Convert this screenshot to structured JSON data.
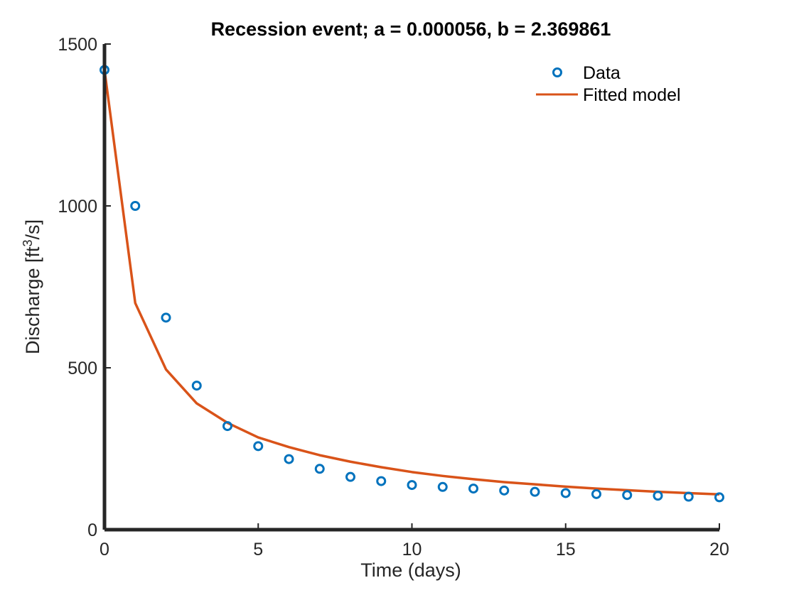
{
  "chart_data": {
    "type": "scatter",
    "title": "Recession event; a = 0.000056, b = 2.369861",
    "xlabel": "Time (days)",
    "ylabel_main": "Discharge [ft",
    "ylabel_sup": "3",
    "ylabel_tail": "/s]",
    "xlim": [
      0,
      20
    ],
    "ylim": [
      0,
      1500
    ],
    "xticks": [
      0,
      5,
      10,
      15,
      20
    ],
    "yticks": [
      0,
      500,
      1000,
      1500
    ],
    "grid": false,
    "legend_position": "top-right",
    "series": [
      {
        "name": "Data",
        "kind": "markers",
        "marker": "circle",
        "color": "#0072BD",
        "x": [
          0,
          1,
          2,
          3,
          4,
          5,
          6,
          7,
          8,
          9,
          10,
          11,
          12,
          13,
          14,
          15,
          16,
          17,
          18,
          19,
          20
        ],
        "y": [
          1420,
          1000,
          655,
          445,
          320,
          258,
          218,
          188,
          163,
          150,
          138,
          132,
          127,
          121,
          117,
          113,
          110,
          107,
          105,
          102,
          100
        ]
      },
      {
        "name": "Fitted model",
        "kind": "line",
        "color": "#D95319",
        "x": [
          0,
          1,
          2,
          3,
          4,
          5,
          6,
          7,
          8,
          9,
          10,
          11,
          12,
          13,
          14,
          15,
          16,
          17,
          18,
          19,
          20
        ],
        "y": [
          1420,
          700,
          495,
          390,
          330,
          285,
          255,
          230,
          210,
          193,
          178,
          166,
          156,
          147,
          140,
          133,
          127,
          122,
          117,
          113,
          109
        ]
      }
    ]
  }
}
